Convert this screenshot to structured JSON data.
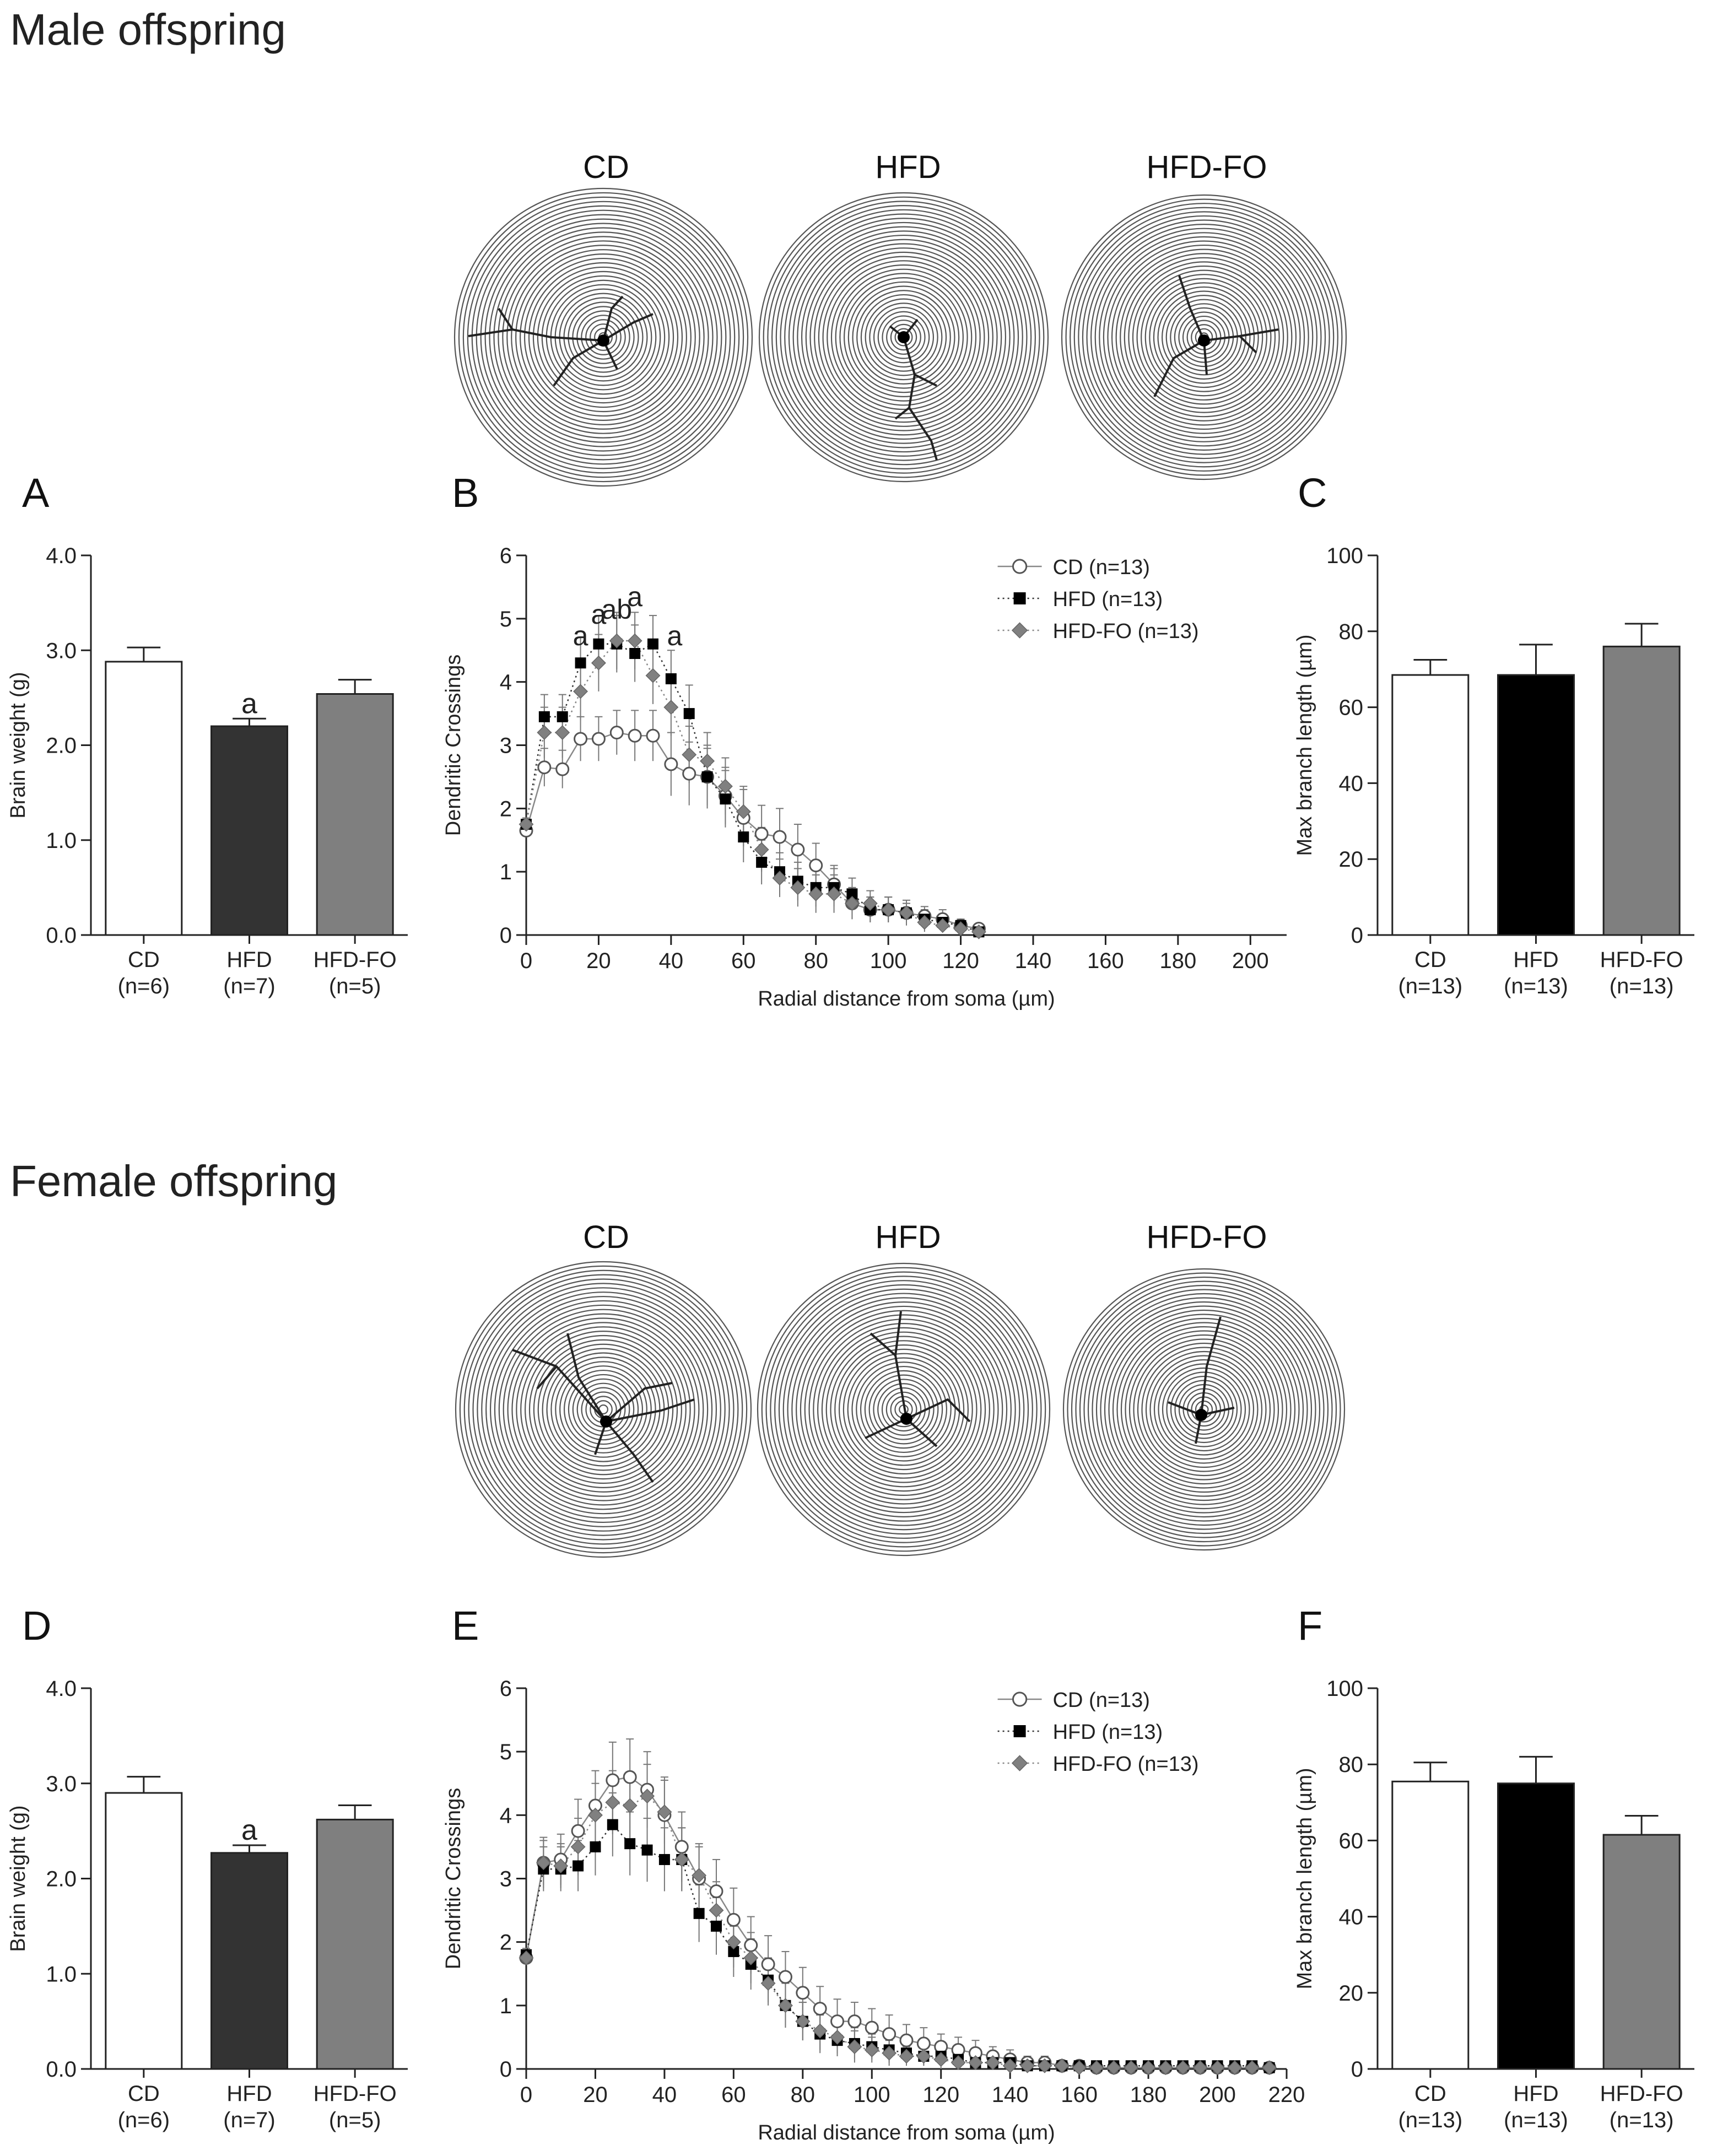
{
  "male": {
    "title": "Male offspring",
    "neuron_labels": [
      "CD",
      "HFD",
      "HFD-FO"
    ],
    "panels": {
      "A": "A",
      "B": "B",
      "C": "C"
    }
  },
  "female": {
    "title": "Female offspring",
    "neuron_labels": [
      "CD",
      "HFD",
      "HFD-FO"
    ],
    "panels": {
      "D": "D",
      "E": "E",
      "F": "F"
    }
  },
  "colors": {
    "white_bar": "#ffffff",
    "dark_bar": "#333333",
    "black_bar": "#000000",
    "grey_bar": "#7f7f7f",
    "axis": "#222222",
    "diamond": "#808080"
  },
  "chart_data": [
    {
      "id": "A",
      "type": "bar",
      "ylabel": "Brain weight (g)",
      "ylim": [
        0,
        4
      ],
      "yticks": [
        "0.0",
        "1.0",
        "2.0",
        "3.0",
        "4.0"
      ],
      "categories": [
        "CD",
        "HFD",
        "HFD-FO"
      ],
      "category_n": [
        "(n=6)",
        "(n=7)",
        "(n=5)"
      ],
      "values": [
        2.88,
        2.2,
        2.54
      ],
      "errors": [
        0.15,
        0.08,
        0.15
      ],
      "fills": [
        "#ffffff",
        "#333333",
        "#7f7f7f"
      ],
      "annotations": [
        "",
        "a",
        ""
      ]
    },
    {
      "id": "B",
      "type": "line",
      "xlabel": "Radial distance from soma (µm)",
      "ylabel": "Dendritic Crossings",
      "xlim": [
        0,
        210
      ],
      "ylim": [
        0,
        6
      ],
      "xticks": [
        "0",
        "20",
        "40",
        "60",
        "80",
        "100",
        "120",
        "140",
        "160",
        "180",
        "200"
      ],
      "yticks": [
        "0",
        "1",
        "2",
        "3",
        "4",
        "5",
        "6"
      ],
      "x": [
        0,
        5,
        10,
        15,
        20,
        25,
        30,
        35,
        40,
        45,
        50,
        55,
        60,
        65,
        70,
        75,
        80,
        85,
        90,
        95,
        100,
        105,
        110,
        115,
        120,
        125
      ],
      "series": [
        {
          "name": "CD (n=13)",
          "marker": "circle",
          "values": [
            1.65,
            2.65,
            2.62,
            3.1,
            3.1,
            3.2,
            3.15,
            3.15,
            2.7,
            2.55,
            2.5,
            2.2,
            1.85,
            1.6,
            1.55,
            1.35,
            1.1,
            0.8,
            0.5,
            0.4,
            0.4,
            0.35,
            0.3,
            0.25,
            0.15,
            0.1
          ],
          "err": [
            0.1,
            0.3,
            0.3,
            0.35,
            0.35,
            0.35,
            0.4,
            0.4,
            0.5,
            0.5,
            0.5,
            0.45,
            0.45,
            0.45,
            0.45,
            0.4,
            0.35,
            0.3,
            0.25,
            0.2,
            0.2,
            0.2,
            0.15,
            0.15,
            0.1,
            0.05
          ]
        },
        {
          "name": "HFD (n=13)",
          "marker": "square",
          "values": [
            1.75,
            3.45,
            3.45,
            4.3,
            4.6,
            4.6,
            4.45,
            4.6,
            4.05,
            3.5,
            2.5,
            2.15,
            1.55,
            1.15,
            1.0,
            0.85,
            0.75,
            0.75,
            0.65,
            0.4,
            0.4,
            0.35,
            0.25,
            0.2,
            0.15,
            0.05
          ],
          "err": [
            0.1,
            0.35,
            0.35,
            0.4,
            0.45,
            0.45,
            0.45,
            0.45,
            0.45,
            0.45,
            0.45,
            0.45,
            0.4,
            0.35,
            0.3,
            0.3,
            0.3,
            0.3,
            0.25,
            0.2,
            0.2,
            0.15,
            0.15,
            0.1,
            0.1,
            0.05
          ]
        },
        {
          "name": "HFD-FO (n=13)",
          "marker": "diamond",
          "values": [
            1.75,
            3.2,
            3.2,
            3.85,
            4.3,
            4.65,
            4.65,
            4.1,
            3.6,
            2.85,
            2.75,
            2.35,
            1.95,
            1.35,
            0.9,
            0.75,
            0.65,
            0.65,
            0.5,
            0.5,
            0.4,
            0.35,
            0.2,
            0.15,
            0.1,
            0.05
          ],
          "err": [
            0.1,
            0.4,
            0.4,
            0.45,
            0.45,
            0.45,
            0.45,
            0.45,
            0.45,
            0.45,
            0.45,
            0.45,
            0.4,
            0.35,
            0.3,
            0.3,
            0.3,
            0.3,
            0.25,
            0.2,
            0.2,
            0.15,
            0.15,
            0.1,
            0.1,
            0.05
          ]
        }
      ],
      "annotations": [
        {
          "x": 15,
          "y": 4.58,
          "text": "a"
        },
        {
          "x": 20,
          "y": 4.92,
          "text": "a"
        },
        {
          "x": 25,
          "y": 5.0,
          "text": "ab"
        },
        {
          "x": 30,
          "y": 5.2,
          "text": "a"
        },
        {
          "x": 41,
          "y": 4.58,
          "text": "a"
        }
      ],
      "legend_position": "top-right"
    },
    {
      "id": "C",
      "type": "bar",
      "ylabel": "Max branch length (µm)",
      "ylim": [
        0,
        100
      ],
      "yticks": [
        "0",
        "20",
        "40",
        "60",
        "80",
        "100"
      ],
      "categories": [
        "CD",
        "HFD",
        "HFD-FO"
      ],
      "category_n": [
        "(n=13)",
        "(n=13)",
        "(n=13)"
      ],
      "values": [
        68.5,
        68.5,
        76.0
      ],
      "errors": [
        4.0,
        8.0,
        6.0
      ],
      "fills": [
        "#ffffff",
        "#000000",
        "#7f7f7f"
      ],
      "annotations": [
        "",
        "",
        ""
      ]
    },
    {
      "id": "D",
      "type": "bar",
      "ylabel": "Brain weight (g)",
      "ylim": [
        0,
        4
      ],
      "yticks": [
        "0.0",
        "1.0",
        "2.0",
        "3.0",
        "4.0"
      ],
      "categories": [
        "CD",
        "HFD",
        "HFD-FO"
      ],
      "category_n": [
        "(n=6)",
        "(n=7)",
        "(n=5)"
      ],
      "values": [
        2.9,
        2.27,
        2.62
      ],
      "errors": [
        0.17,
        0.08,
        0.15
      ],
      "fills": [
        "#ffffff",
        "#333333",
        "#7f7f7f"
      ],
      "annotations": [
        "",
        "a",
        ""
      ]
    },
    {
      "id": "E",
      "type": "line",
      "xlabel": "Radial distance from soma (µm)",
      "ylabel": "Dendritic Crossings",
      "xlim": [
        0,
        220
      ],
      "ylim": [
        0,
        6
      ],
      "xticks": [
        "0",
        "20",
        "40",
        "60",
        "80",
        "100",
        "120",
        "140",
        "160",
        "180",
        "200",
        "220"
      ],
      "yticks": [
        "0",
        "1",
        "2",
        "3",
        "4",
        "5",
        "6"
      ],
      "x": [
        0,
        5,
        10,
        15,
        20,
        25,
        30,
        35,
        40,
        45,
        50,
        55,
        60,
        65,
        70,
        75,
        80,
        85,
        90,
        95,
        100,
        105,
        110,
        115,
        120,
        125,
        130,
        135,
        140,
        145,
        150,
        155,
        160,
        165,
        170,
        175,
        180,
        185,
        190,
        195,
        200,
        205,
        210,
        215
      ],
      "series": [
        {
          "name": "CD (n=13)",
          "marker": "circle",
          "values": [
            1.75,
            3.25,
            3.3,
            3.75,
            4.15,
            4.55,
            4.6,
            4.4,
            4.0,
            3.5,
            3.0,
            2.8,
            2.35,
            1.95,
            1.65,
            1.45,
            1.2,
            0.95,
            0.75,
            0.75,
            0.65,
            0.55,
            0.45,
            0.4,
            0.35,
            0.3,
            0.25,
            0.2,
            0.15,
            0.1,
            0.1,
            0.05,
            0.05,
            0.02,
            0.02,
            0.02,
            0.02,
            0.02,
            0.02,
            0.02,
            0.02,
            0.02,
            0.02,
            0.02
          ],
          "err": [
            0.1,
            0.4,
            0.4,
            0.5,
            0.55,
            0.6,
            0.6,
            0.6,
            0.6,
            0.55,
            0.55,
            0.5,
            0.5,
            0.45,
            0.45,
            0.4,
            0.4,
            0.35,
            0.35,
            0.3,
            0.3,
            0.3,
            0.25,
            0.25,
            0.2,
            0.2,
            0.2,
            0.15,
            0.15,
            0.1,
            0.1,
            0.05,
            0.05,
            0.02,
            0.02,
            0.02,
            0.02,
            0.02,
            0.02,
            0.02,
            0.02,
            0.02,
            0.02,
            0.02
          ]
        },
        {
          "name": "HFD (n=13)",
          "marker": "square",
          "values": [
            1.8,
            3.15,
            3.15,
            3.2,
            3.5,
            3.85,
            3.55,
            3.45,
            3.3,
            3.3,
            2.45,
            2.25,
            1.85,
            1.65,
            1.4,
            1.0,
            0.75,
            0.55,
            0.45,
            0.4,
            0.35,
            0.3,
            0.25,
            0.2,
            0.2,
            0.15,
            0.1,
            0.1,
            0.1,
            0.05,
            0.05,
            0.05,
            0.05,
            0.05,
            0.05,
            0.05,
            0.05,
            0.05,
            0.05,
            0.05,
            0.05,
            0.05,
            0.05,
            0.02
          ],
          "err": [
            0.1,
            0.35,
            0.35,
            0.4,
            0.45,
            0.5,
            0.5,
            0.5,
            0.5,
            0.5,
            0.45,
            0.45,
            0.4,
            0.4,
            0.35,
            0.35,
            0.3,
            0.3,
            0.25,
            0.25,
            0.2,
            0.2,
            0.15,
            0.15,
            0.15,
            0.1,
            0.1,
            0.1,
            0.1,
            0.05,
            0.05,
            0.05,
            0.05,
            0.05,
            0.05,
            0.05,
            0.05,
            0.05,
            0.05,
            0.05,
            0.05,
            0.05,
            0.05,
            0.02
          ]
        },
        {
          "name": "HFD-FO (n=13)",
          "marker": "diamond",
          "values": [
            1.75,
            3.25,
            3.2,
            3.5,
            4.0,
            4.2,
            4.15,
            4.3,
            4.05,
            3.3,
            3.05,
            2.5,
            2.0,
            1.75,
            1.35,
            1.0,
            0.75,
            0.6,
            0.5,
            0.35,
            0.3,
            0.25,
            0.2,
            0.2,
            0.15,
            0.1,
            0.1,
            0.1,
            0.05,
            0.05,
            0.05,
            0.05,
            0.02,
            0.02,
            0.02,
            0.02,
            0.02,
            0.02,
            0.02,
            0.02,
            0.02,
            0.02,
            0.02,
            0.02
          ],
          "err": [
            0.1,
            0.35,
            0.35,
            0.45,
            0.5,
            0.5,
            0.5,
            0.5,
            0.5,
            0.5,
            0.45,
            0.45,
            0.4,
            0.4,
            0.35,
            0.35,
            0.3,
            0.3,
            0.25,
            0.25,
            0.2,
            0.2,
            0.15,
            0.15,
            0.15,
            0.1,
            0.1,
            0.1,
            0.05,
            0.05,
            0.05,
            0.05,
            0.02,
            0.02,
            0.02,
            0.02,
            0.02,
            0.02,
            0.02,
            0.02,
            0.02,
            0.02,
            0.02,
            0.02
          ]
        }
      ],
      "annotations": [],
      "legend_position": "top-right"
    },
    {
      "id": "F",
      "type": "bar",
      "ylabel": "Max branch length (µm)",
      "ylim": [
        0,
        100
      ],
      "yticks": [
        "0",
        "20",
        "40",
        "60",
        "80",
        "100"
      ],
      "categories": [
        "CD",
        "HFD",
        "HFD-FO"
      ],
      "category_n": [
        "(n=13)",
        "(n=13)",
        "(n=13)"
      ],
      "values": [
        75.5,
        75.0,
        61.5
      ],
      "errors": [
        5.0,
        7.0,
        5.0
      ],
      "fills": [
        "#ffffff",
        "#000000",
        "#7f7f7f"
      ],
      "annotations": [
        "",
        "",
        ""
      ]
    }
  ]
}
